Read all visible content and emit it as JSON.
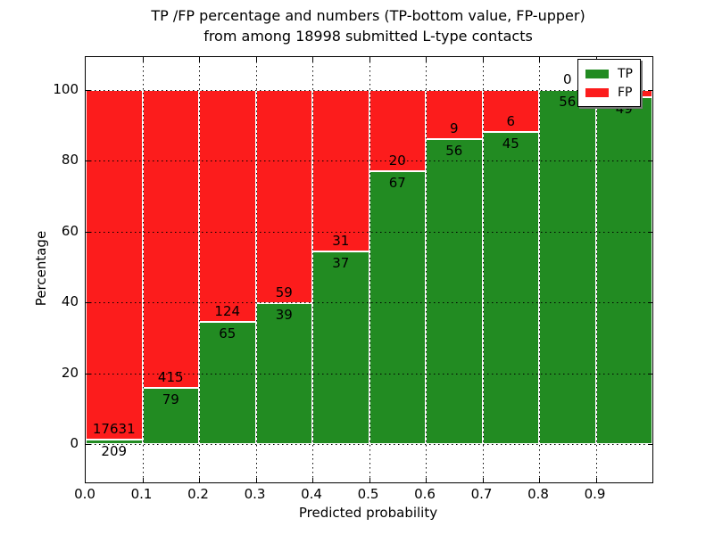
{
  "title": {
    "line1": "TP /FP percentage and numbers (TP-bottom value, FP-upper)",
    "line2": "from among 18998 submitted L-type contacts"
  },
  "chart_data": {
    "type": "bar",
    "stacked": true,
    "title": "TP /FP percentage and numbers (TP-bottom value, FP-upper) from among 18998 submitted L-type contacts",
    "xlabel": "Predicted probability",
    "ylabel": "Percentage",
    "total_contacts": 18998,
    "x_ticks": [
      "0.0",
      "0.1",
      "0.2",
      "0.3",
      "0.4",
      "0.5",
      "0.6",
      "0.7",
      "0.8",
      "0.9"
    ],
    "y_ticks": [
      0,
      20,
      40,
      60,
      80,
      100
    ],
    "xlim": [
      0.0,
      1.0
    ],
    "ylim": [
      -10.8,
      110
    ],
    "bin_width": 0.1,
    "grid": "dotted-black",
    "legend_position": "upper-right",
    "colors": {
      "tp": "#228b22",
      "fp": "#fc1c1c",
      "bar_edge": "#ffffff"
    },
    "legend": [
      {
        "label": "TP",
        "color": "#228b22"
      },
      {
        "label": "FP",
        "color": "#fc1c1c"
      }
    ],
    "bins": [
      {
        "range": "0.0-0.1",
        "tp": 209,
        "fp": 17631,
        "tp_pct": 1.17
      },
      {
        "range": "0.1-0.2",
        "tp": 79,
        "fp": 415,
        "tp_pct": 15.99
      },
      {
        "range": "0.2-0.3",
        "tp": 65,
        "fp": 124,
        "tp_pct": 34.39
      },
      {
        "range": "0.3-0.4",
        "tp": 39,
        "fp": 59,
        "tp_pct": 39.8
      },
      {
        "range": "0.4-0.5",
        "tp": 37,
        "fp": 31,
        "tp_pct": 54.41
      },
      {
        "range": "0.5-0.6",
        "tp": 67,
        "fp": 20,
        "tp_pct": 77.01
      },
      {
        "range": "0.6-0.7",
        "tp": 56,
        "fp": 9,
        "tp_pct": 86.15
      },
      {
        "range": "0.7-0.8",
        "tp": 45,
        "fp": 6,
        "tp_pct": 88.24
      },
      {
        "range": "0.8-0.9",
        "tp": 56,
        "fp": 0,
        "tp_pct": 100.0
      },
      {
        "range": "0.9-1.0",
        "tp": 49,
        "fp": null,
        "tp_pct": 98.0
      }
    ]
  }
}
